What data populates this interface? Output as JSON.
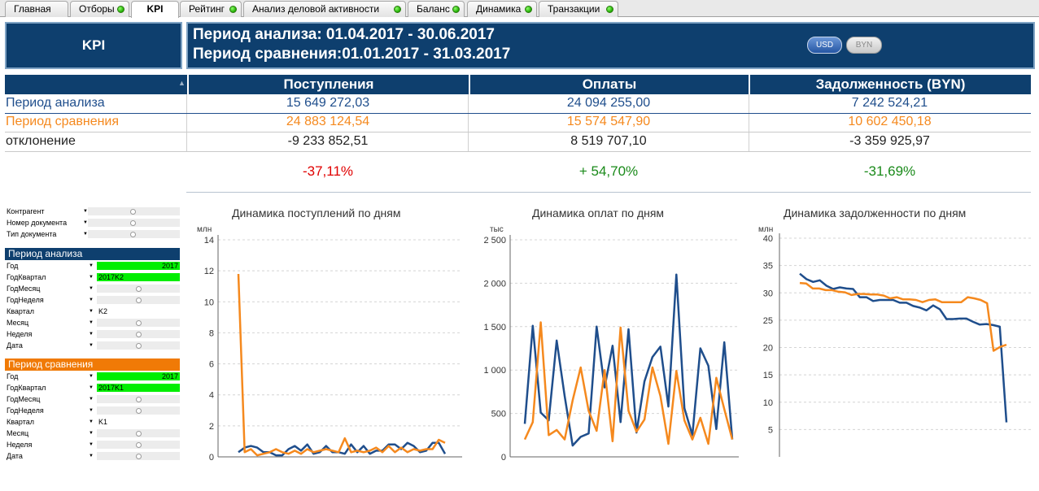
{
  "tabs": [
    {
      "label": "Главная",
      "dot": false
    },
    {
      "label": "Отборы",
      "dot": true
    },
    {
      "label": "KPI",
      "dot": false,
      "active": true
    },
    {
      "label": "Рейтинг",
      "dot": true
    },
    {
      "label": "Анализ деловой активности",
      "dot": true
    },
    {
      "label": "Баланс",
      "dot": true
    },
    {
      "label": "Динамика",
      "dot": true
    },
    {
      "label": "Транзакции",
      "dot": true
    }
  ],
  "header": {
    "kpi_label": "KPI",
    "period_analysis": "Период анализа: 01.04.2017 - 30.06.2017",
    "period_compare": "Период сравнения:01.01.2017 - 31.03.2017",
    "currency_usd": "USD",
    "currency_byn": "BYN"
  },
  "kpi_table": {
    "columns": [
      "Поступления",
      "Оплаты",
      "Задолженность (BYN)"
    ],
    "rows": [
      {
        "label": "Период анализа",
        "values": [
          "15 649 272,03",
          "24 094 255,00",
          "7 242 524,21"
        ]
      },
      {
        "label": "Период сравнения",
        "values": [
          "24 883 124,54",
          "15 574 547,90",
          "10 602 450,18"
        ]
      },
      {
        "label": "отклонение",
        "values": [
          "-9 233 852,51",
          "8 519 707,10",
          "-3 359 925,97"
        ]
      }
    ],
    "percents": [
      "-37,11%",
      "+ 54,70%",
      "-31,69%"
    ]
  },
  "colors": {
    "navy": "#0e3f6e",
    "analysis": "#1f4e8c",
    "compare": "#f5891e",
    "negative": "#e00000",
    "positive": "#1a8a1a",
    "filter_green": "#00ee00",
    "orange_header": "#f07a06"
  },
  "filters": {
    "top": [
      {
        "label": "Контрагент"
      },
      {
        "label": "Номер документа"
      },
      {
        "label": "Тип документа"
      }
    ],
    "analysis": {
      "title": "Период анализа",
      "items": [
        {
          "label": "Год",
          "value": "2017",
          "mode": "green-right"
        },
        {
          "label": "ГодКвартал",
          "value": "2017K2",
          "mode": "green-left"
        },
        {
          "label": "ГодМесяц",
          "value": "",
          "mode": "circle"
        },
        {
          "label": "ГодНеделя",
          "value": "",
          "mode": "circle"
        },
        {
          "label": "Квартал",
          "value": "K2",
          "mode": "plain"
        },
        {
          "label": "Месяц",
          "value": "",
          "mode": "circle"
        },
        {
          "label": "Неделя",
          "value": "",
          "mode": "circle"
        },
        {
          "label": "Дата",
          "value": "",
          "mode": "circle"
        }
      ]
    },
    "compare": {
      "title": "Период сравнения",
      "items": [
        {
          "label": "Год",
          "value": "2017",
          "mode": "green-right"
        },
        {
          "label": "ГодКвартал",
          "value": "2017K1",
          "mode": "green-left"
        },
        {
          "label": "ГодМесяц",
          "value": "",
          "mode": "circle"
        },
        {
          "label": "ГодНеделя",
          "value": "",
          "mode": "circle"
        },
        {
          "label": "Квартал",
          "value": "K1",
          "mode": "plain"
        },
        {
          "label": "Месяц",
          "value": "",
          "mode": "circle"
        },
        {
          "label": "Неделя",
          "value": "",
          "mode": "circle"
        },
        {
          "label": "Дата",
          "value": "",
          "mode": "circle"
        }
      ]
    }
  },
  "chart_data": [
    {
      "type": "line",
      "title": "Динамика поступлений по дням",
      "ylabel": "млн",
      "ylim": [
        0,
        14
      ],
      "yticks": [
        "0",
        "2",
        "4",
        "6",
        "8",
        "10",
        "12",
        "14"
      ],
      "grid": true,
      "series": [
        {
          "color": "#1f4e8c",
          "values": [
            0.3,
            0.6,
            0.7,
            0.6,
            0.3,
            0.3,
            0.1,
            0.1,
            0.5,
            0.7,
            0.4,
            0.8,
            0.2,
            0.3,
            0.7,
            0.3,
            0.3,
            0.2,
            0.8,
            0.3,
            0.7,
            0.2,
            0.4,
            0.4,
            0.8,
            0.8,
            0.5,
            0.9,
            0.7,
            0.3,
            0.4,
            0.9,
            0.9,
            0.2
          ]
        },
        {
          "color": "#f5891e",
          "values": [
            11.8,
            0.3,
            0.5,
            0.1,
            0.2,
            0.3,
            0.5,
            0.3,
            0.2,
            0.4,
            0.2,
            0.5,
            0.3,
            0.4,
            0.5,
            0.4,
            0.3,
            1.2,
            0.3,
            0.4,
            0.3,
            0.4,
            0.6,
            0.3,
            0.7,
            0.3,
            0.6,
            0.3,
            0.5,
            0.4,
            0.5,
            0.5,
            1.1,
            0.9
          ]
        }
      ]
    },
    {
      "type": "line",
      "title": "Динамика оплат по дням",
      "ylabel": "тыс",
      "ylim": [
        0,
        2500
      ],
      "yticks": [
        "0",
        "500",
        "1 000",
        "1 500",
        "2 000",
        "2 500"
      ],
      "grid": true,
      "series": [
        {
          "color": "#1f4e8c",
          "values": [
            380,
            1510,
            510,
            420,
            1340,
            700,
            130,
            230,
            270,
            1500,
            800,
            1280,
            400,
            1470,
            280,
            870,
            1150,
            1270,
            580,
            2100,
            560,
            250,
            1250,
            1050,
            320,
            1320,
            200
          ]
        },
        {
          "color": "#f5891e",
          "values": [
            200,
            400,
            1550,
            250,
            310,
            200,
            650,
            1030,
            530,
            300,
            1000,
            180,
            1490,
            530,
            290,
            430,
            1030,
            700,
            150,
            990,
            420,
            200,
            450,
            150,
            910,
            550,
            200
          ]
        }
      ]
    },
    {
      "type": "line",
      "title": "Динамика задолженности по дням",
      "ylabel": "млн",
      "ylim": [
        0,
        40
      ],
      "yticks": [
        "5",
        "10",
        "15",
        "20",
        "25",
        "30",
        "35",
        "40"
      ],
      "grid": true,
      "series": [
        {
          "color": "#1f4e8c",
          "values": [
            33.5,
            32.5,
            32,
            32.3,
            31.3,
            30.7,
            31,
            30.8,
            30.7,
            29.2,
            29.2,
            28.5,
            28.7,
            28.7,
            28.7,
            28.2,
            28.2,
            27.6,
            27.3,
            26.8,
            27.7,
            27,
            25.2,
            25.2,
            25.3,
            25.3,
            24.7,
            24.2,
            24.3,
            24.1,
            23.8,
            6.3
          ]
        },
        {
          "color": "#f5891e",
          "values": [
            31.8,
            31.7,
            30.8,
            30.8,
            30.5,
            30.5,
            30.2,
            30.1,
            29.6,
            29.8,
            29.8,
            29.7,
            29.7,
            29.5,
            29,
            29.2,
            28.8,
            28.8,
            28.7,
            28.3,
            28.7,
            28.8,
            28.3,
            28.3,
            28.3,
            28.3,
            29.2,
            29,
            28.7,
            28.1,
            19.4,
            20.1,
            20.5
          ]
        }
      ]
    }
  ]
}
